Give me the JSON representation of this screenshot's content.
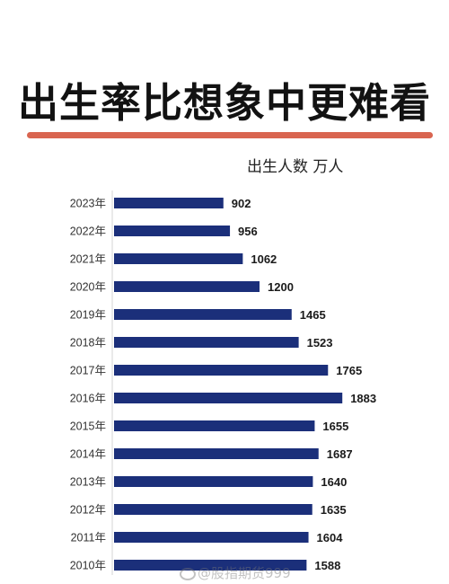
{
  "headline": "出生率比想象中更难看",
  "unit_label": "出生人数 万人",
  "colors": {
    "bar": "#1b2f7a",
    "underline": "#d96550",
    "axis": "#d6d6d6"
  },
  "chart_data": {
    "type": "bar",
    "orientation": "horizontal",
    "title": "出生率比想象中更难看",
    "ylabel": "出生人数 万人",
    "categories": [
      "2023年",
      "2022年",
      "2021年",
      "2020年",
      "2019年",
      "2018年",
      "2017年",
      "2016年",
      "2015年",
      "2014年",
      "2013年",
      "2012年",
      "2011年",
      "2010年"
    ],
    "values": [
      902,
      956,
      1062,
      1200,
      1465,
      1523,
      1765,
      1883,
      1655,
      1687,
      1640,
      1635,
      1604,
      1588
    ],
    "xlim": [
      0,
      2000
    ],
    "grid": false,
    "legend": "none"
  },
  "watermark": "@股指期货999"
}
